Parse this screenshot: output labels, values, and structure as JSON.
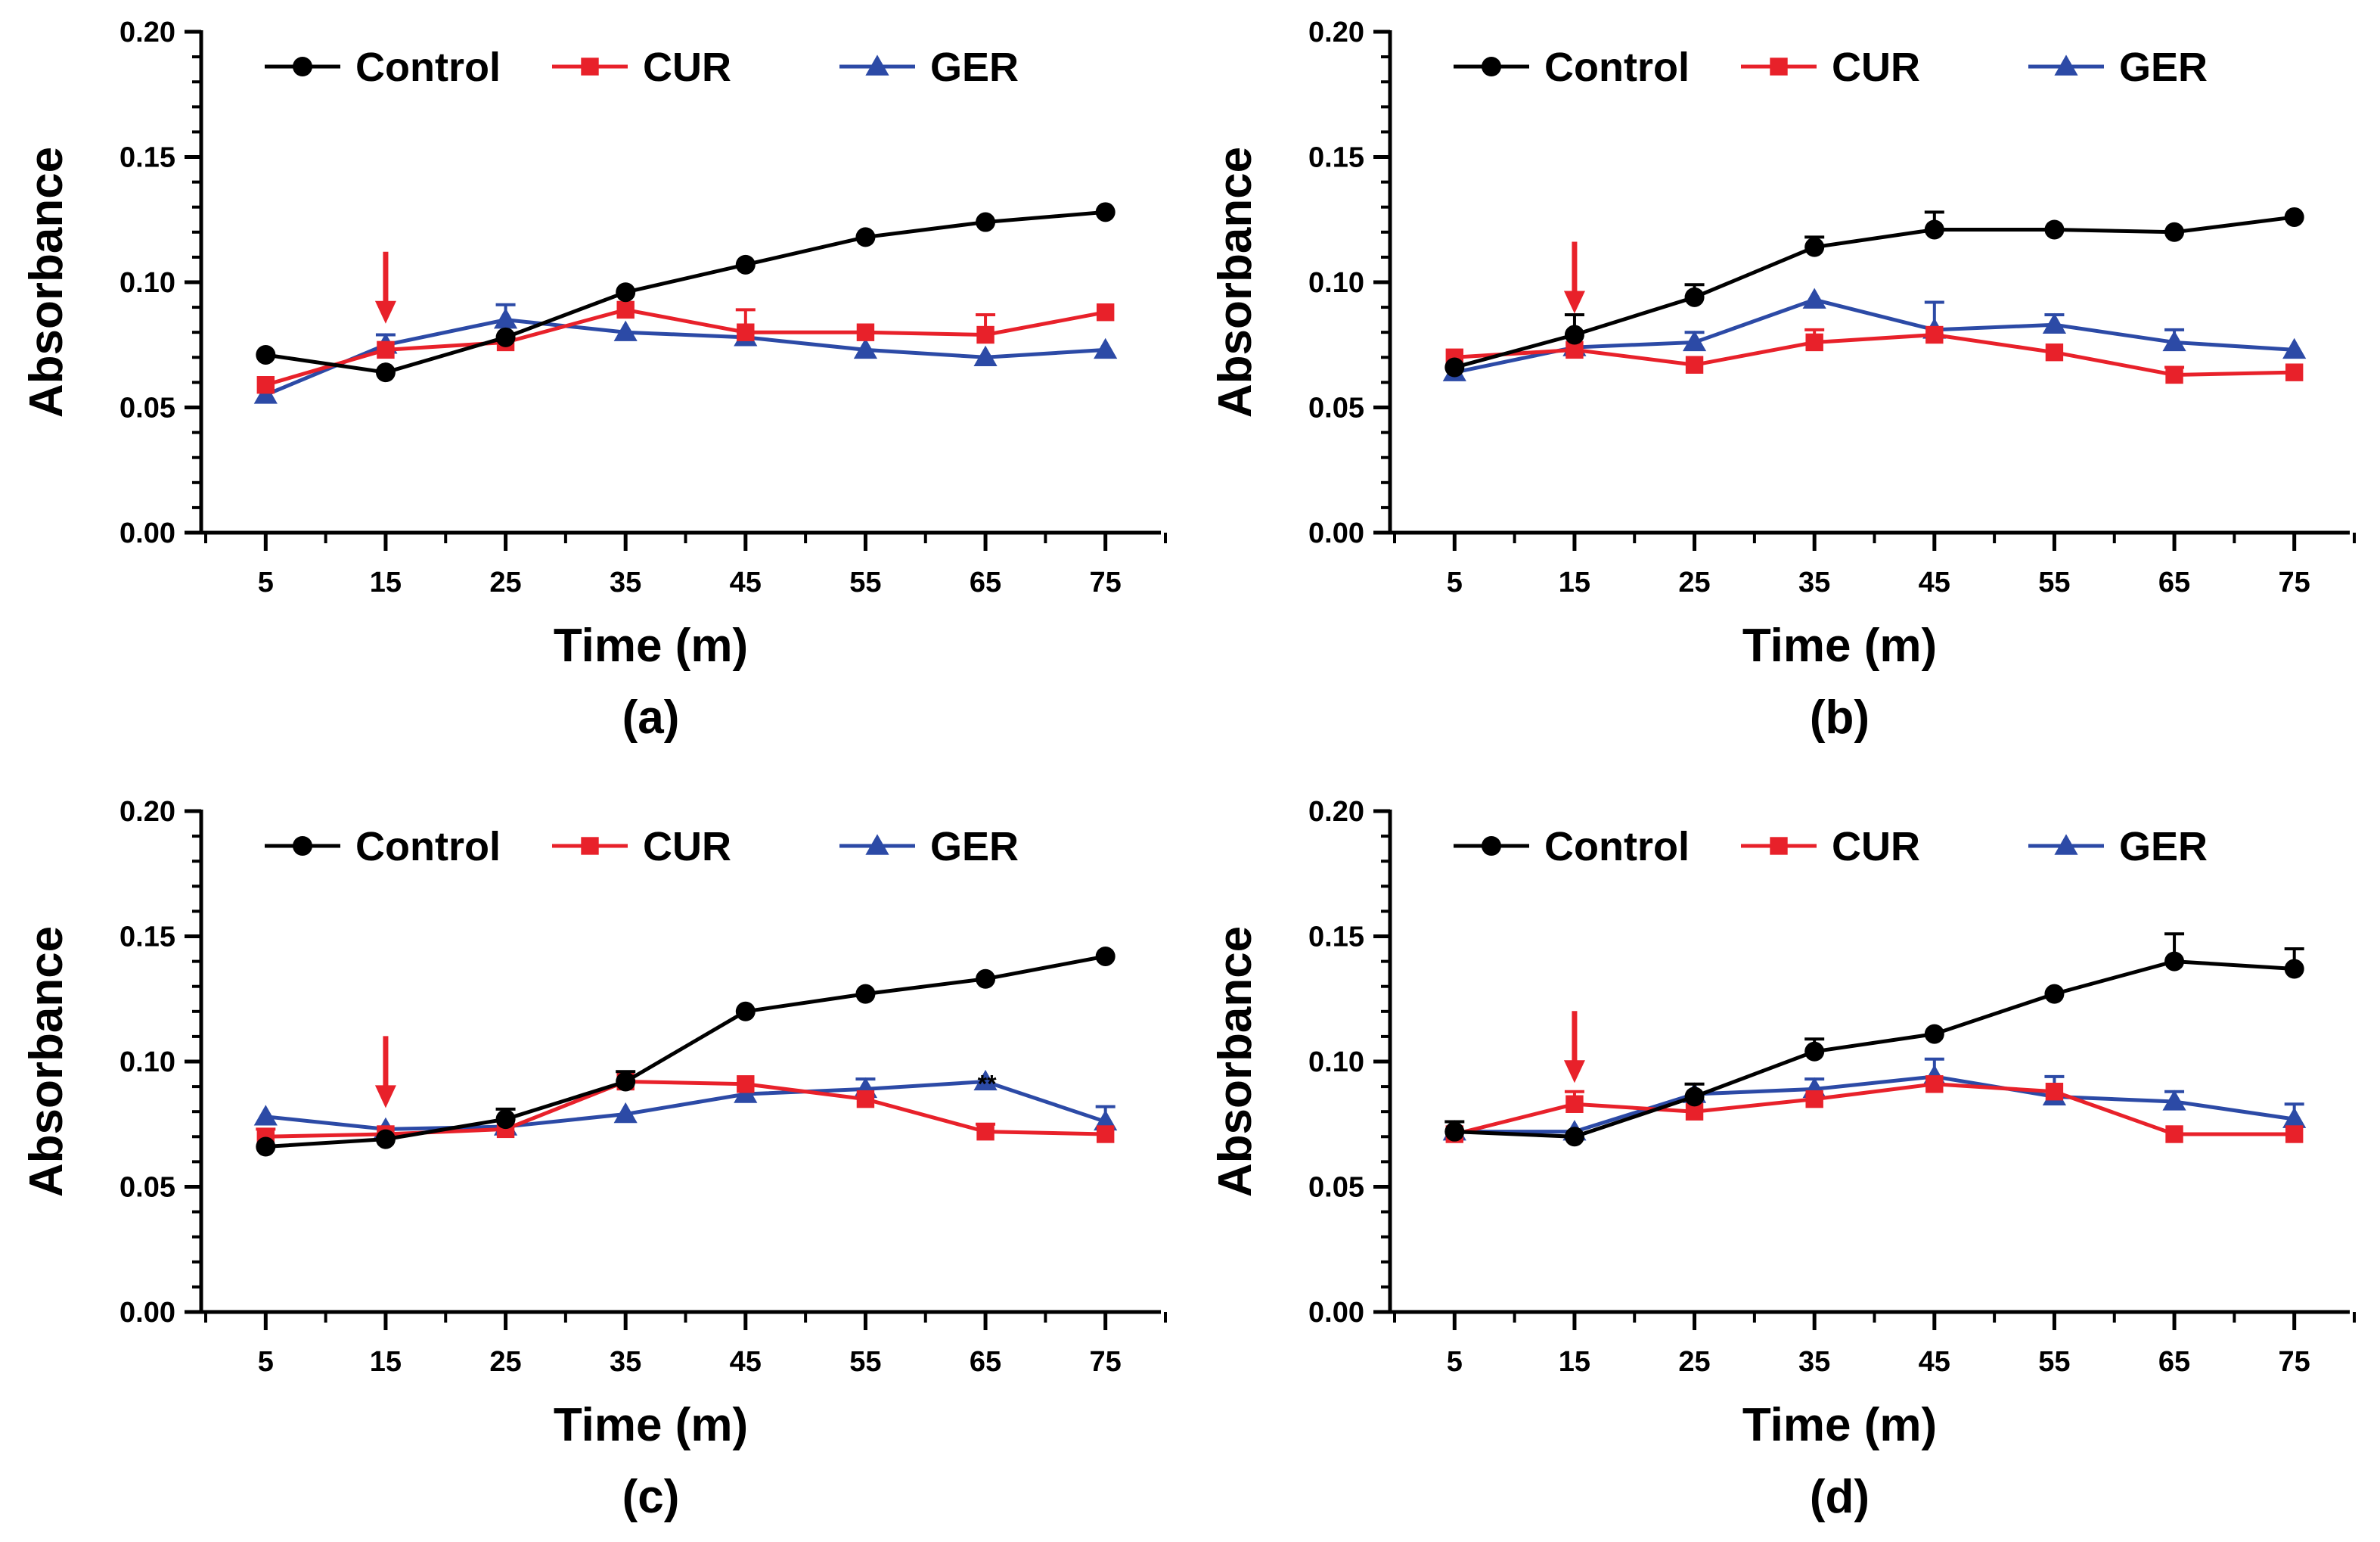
{
  "colors": {
    "control": "#000000",
    "cur": "#e8212a",
    "ger": "#2c4aa6",
    "arrow": "#e8212a",
    "axis": "#000000"
  },
  "chart_data": [
    {
      "type": "line",
      "panel_label": "(a)",
      "xlabel": "Time (m)",
      "ylabel": "Absorbance",
      "ylim": [
        0,
        0.2
      ],
      "yticks": [
        "0.00",
        "0.05",
        "0.10",
        "0.15",
        "0.20"
      ],
      "x": [
        5,
        15,
        25,
        35,
        45,
        55,
        65,
        75
      ],
      "arrow_at": 15,
      "annotation": null,
      "series": [
        {
          "name": "Control",
          "marker": "circle",
          "values": [
            0.071,
            0.064,
            0.078,
            0.096,
            0.107,
            0.118,
            0.124,
            0.128
          ],
          "errors": [
            0,
            0,
            0,
            0,
            0,
            0,
            0,
            0
          ]
        },
        {
          "name": "CUR",
          "marker": "square",
          "values": [
            0.059,
            0.073,
            0.076,
            0.089,
            0.08,
            0.08,
            0.079,
            0.088
          ],
          "errors": [
            0,
            0,
            0,
            0,
            0.009,
            0,
            0.008,
            0
          ]
        },
        {
          "name": "GER",
          "marker": "triangle",
          "values": [
            0.055,
            0.075,
            0.085,
            0.08,
            0.078,
            0.073,
            0.07,
            0.073
          ],
          "errors": [
            0,
            0.004,
            0.006,
            0,
            0,
            0,
            0,
            0
          ]
        }
      ]
    },
    {
      "type": "line",
      "panel_label": "(b)",
      "xlabel": "Time (m)",
      "ylabel": "Absorbance",
      "ylim": [
        0,
        0.2
      ],
      "yticks": [
        "0.00",
        "0.05",
        "0.10",
        "0.15",
        "0.20"
      ],
      "x": [
        5,
        15,
        25,
        35,
        45,
        55,
        65,
        75
      ],
      "arrow_at": 15,
      "annotation": null,
      "series": [
        {
          "name": "Control",
          "marker": "circle",
          "values": [
            0.066,
            0.079,
            0.094,
            0.114,
            0.121,
            0.121,
            0.12,
            0.126
          ],
          "errors": [
            0,
            0.008,
            0.005,
            0.004,
            0.007,
            0,
            0,
            0
          ]
        },
        {
          "name": "CUR",
          "marker": "square",
          "values": [
            0.07,
            0.073,
            0.067,
            0.076,
            0.079,
            0.072,
            0.063,
            0.064
          ],
          "errors": [
            0,
            0,
            0,
            0.005,
            0,
            0,
            0.003,
            0
          ]
        },
        {
          "name": "GER",
          "marker": "triangle",
          "values": [
            0.064,
            0.074,
            0.076,
            0.093,
            0.081,
            0.083,
            0.076,
            0.073
          ],
          "errors": [
            0,
            0,
            0.004,
            0,
            0.011,
            0.004,
            0.005,
            0
          ]
        }
      ]
    },
    {
      "type": "line",
      "panel_label": "(c)",
      "xlabel": "Time (m)",
      "ylabel": "Absorbance",
      "ylim": [
        0,
        0.2
      ],
      "yticks": [
        "0.00",
        "0.05",
        "0.10",
        "0.15",
        "0.20"
      ],
      "x": [
        5,
        15,
        25,
        35,
        45,
        55,
        65,
        75
      ],
      "arrow_at": 15,
      "annotation": {
        "text": "**",
        "x": 65
      },
      "series": [
        {
          "name": "Control",
          "marker": "circle",
          "values": [
            0.066,
            0.069,
            0.077,
            0.092,
            0.12,
            0.127,
            0.133,
            0.142
          ],
          "errors": [
            0,
            0,
            0.004,
            0.004,
            0,
            0,
            0,
            0
          ]
        },
        {
          "name": "CUR",
          "marker": "square",
          "values": [
            0.07,
            0.071,
            0.073,
            0.092,
            0.091,
            0.085,
            0.072,
            0.071
          ],
          "errors": [
            0.003,
            0,
            0,
            0,
            0,
            0,
            0.003,
            0
          ]
        },
        {
          "name": "GER",
          "marker": "triangle",
          "values": [
            0.078,
            0.073,
            0.074,
            0.079,
            0.087,
            0.089,
            0.092,
            0.076
          ],
          "errors": [
            0,
            0,
            0,
            0,
            0,
            0.004,
            0,
            0.006
          ]
        }
      ]
    },
    {
      "type": "line",
      "panel_label": "(d)",
      "xlabel": "Time (m)",
      "ylabel": "Absorbance",
      "ylim": [
        0,
        0.2
      ],
      "yticks": [
        "0.00",
        "0.05",
        "0.10",
        "0.15",
        "0.20"
      ],
      "x": [
        5,
        15,
        25,
        35,
        45,
        55,
        65,
        75
      ],
      "arrow_at": 15,
      "annotation": null,
      "series": [
        {
          "name": "Control",
          "marker": "circle",
          "values": [
            0.072,
            0.07,
            0.086,
            0.104,
            0.111,
            0.127,
            0.14,
            0.137
          ],
          "errors": [
            0.004,
            0,
            0.005,
            0.005,
            0,
            0,
            0.011,
            0.008
          ]
        },
        {
          "name": "CUR",
          "marker": "square",
          "values": [
            0.071,
            0.083,
            0.08,
            0.085,
            0.091,
            0.088,
            0.071,
            0.071
          ],
          "errors": [
            0,
            0.005,
            0,
            0,
            0,
            0,
            0,
            0
          ]
        },
        {
          "name": "GER",
          "marker": "triangle",
          "values": [
            0.072,
            0.072,
            0.087,
            0.089,
            0.094,
            0.086,
            0.084,
            0.077
          ],
          "errors": [
            0,
            0,
            0,
            0.004,
            0.007,
            0.008,
            0.004,
            0.006
          ]
        }
      ]
    }
  ]
}
